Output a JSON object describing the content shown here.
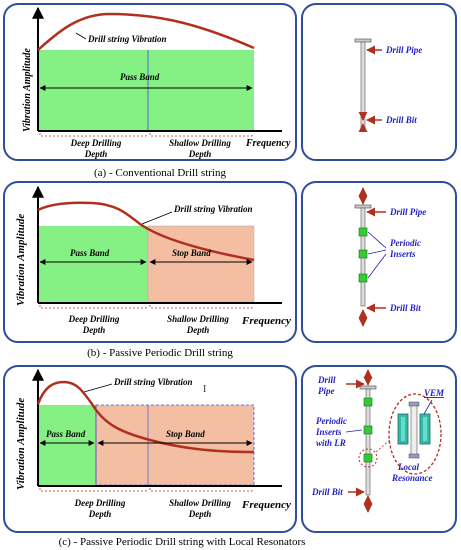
{
  "panel_a": {
    "y_axis_label": "Vibration Amplitude",
    "x_axis_label": "Frequency",
    "curve_label": "Drill string Vibration",
    "band_label": "Pass Band",
    "depth_left": [
      "Deep Drilling",
      "Depth"
    ],
    "depth_right": [
      "Shallow Drilling",
      "Depth"
    ],
    "caption": "(a)  - Conventional Drill string",
    "pipe_label": "Drill Pipe",
    "bit_label": "Drill Bit",
    "colors": {
      "pass_band": "#66ee66",
      "curve": "#b03020"
    }
  },
  "panel_b": {
    "y_axis_label": "Vibration Amplitude",
    "x_axis_label": "Frequency",
    "curve_label": "Drill string Vibration",
    "pass_label": "Pass Band",
    "stop_label": "Stop Band",
    "depth_left": [
      "Deep Drilling",
      "Depth"
    ],
    "depth_right": [
      "Shallow Drilling",
      "Depth"
    ],
    "caption": "(b)  - Passive Periodic Drill string",
    "pipe_label": "Drill Pipe",
    "inserts_label": [
      "Periodic",
      "Inserts"
    ],
    "bit_label": "Drill Bit",
    "colors": {
      "pass_band": "#66ee66",
      "stop_band": "#f2b898"
    }
  },
  "panel_c": {
    "y_axis_label": "Vibration Amplitude",
    "x_axis_label": "Frequency",
    "curve_label": "Drill string Vibration",
    "pass_label": "Pass Band",
    "stop_label": "Stop Band",
    "depth_left": [
      "Deep Drilling",
      "Depth"
    ],
    "depth_right": [
      "Shallow Drilling",
      "Depth"
    ],
    "caption": "(c)  - Passive Periodic Drill string with Local Resonators",
    "pipe_label": [
      "Drill",
      "Pipe"
    ],
    "inserts_label": [
      "Periodic",
      "Inserts",
      "with LR"
    ],
    "bit_label": "Drill Bit",
    "vem_label": "VEM",
    "resonance_label": [
      "Local",
      "Resonance"
    ]
  },
  "colors": {
    "frame": "#2f4d9a",
    "label_blue": "#1f1fbf",
    "arrow": "#b03020",
    "insert": "#33cc33"
  }
}
